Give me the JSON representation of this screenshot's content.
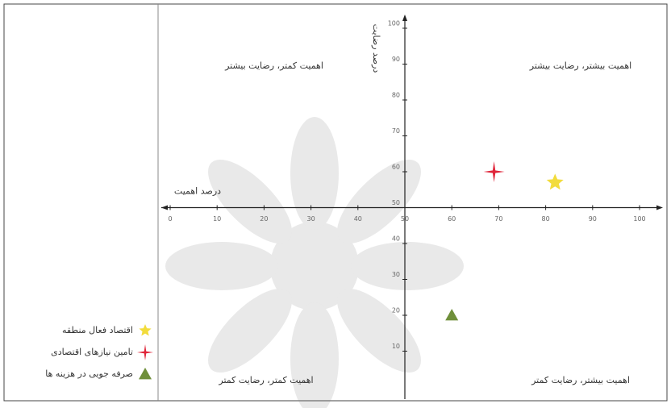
{
  "chart_data": {
    "type": "scatter",
    "xlabel": "درصد اهمیت",
    "ylabel": "درصد رضایت",
    "quadrant_labels": [
      "اهمیت کمتر، رضایت بیشتر",
      "اهمیت بیشتر، رضایت بیشتر",
      "اهمیت کمتر، رضایت کمتر",
      "اهمیت بیشتر، رضایت کمتر"
    ],
    "xlim": [
      0,
      100
    ],
    "xticks": [
      0,
      10,
      20,
      30,
      40,
      50,
      60,
      70,
      80,
      90,
      100
    ],
    "ylim": [
      0,
      100
    ],
    "yticks": [
      10,
      20,
      30,
      40,
      50,
      60,
      70,
      80,
      90,
      100
    ],
    "legend": "bottom-left",
    "series": [
      {
        "name": "اقتصاد فعال منطقه",
        "color": "#f2dc3c",
        "marker": "star",
        "x": [
          82
        ],
        "values": [
          57
        ]
      },
      {
        "name": "تامین نیازهای اقتصادی",
        "color": "#e0253a",
        "marker": "cross",
        "x": [
          69
        ],
        "values": [
          60
        ]
      },
      {
        "name": "صرفه جویی در هزینه ها",
        "color": "#6f8f3a",
        "marker": "triangle",
        "x": [
          60
        ],
        "values": [
          20
        ]
      }
    ]
  }
}
